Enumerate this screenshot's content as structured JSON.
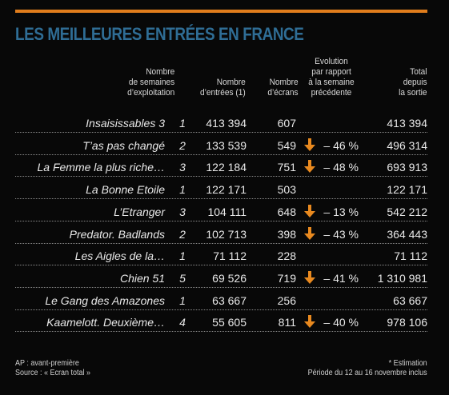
{
  "title": "LES MEILLEURES ENTRÉES EN FRANCE",
  "headers": {
    "weeks": [
      "Nombre",
      "de semaines",
      "d’exploitation"
    ],
    "entries": [
      "Nombre",
      "d’entrées (1)"
    ],
    "screens": [
      "Nombre",
      "d’écrans"
    ],
    "evolution": [
      "Evolution",
      "par rapport",
      "à la semaine",
      "précédente"
    ],
    "total": [
      "Total",
      "depuis",
      "la sortie"
    ]
  },
  "rows": [
    {
      "title": "Insaisissables 3",
      "weeks": "1",
      "entries": "413 394",
      "screens": "607",
      "down": false,
      "evolution": "",
      "total": "413 394"
    },
    {
      "title": "T’as pas changé",
      "weeks": "2",
      "entries": "133 539",
      "screens": "549",
      "down": true,
      "evolution": "– 46 %",
      "total": "496 314"
    },
    {
      "title": "La Femme la plus riche…",
      "weeks": "3",
      "entries": "122 184",
      "screens": "751",
      "down": true,
      "evolution": "– 48 %",
      "total": "693 913"
    },
    {
      "title": "La Bonne Etoile",
      "weeks": "1",
      "entries": "122 171",
      "screens": "503",
      "down": false,
      "evolution": "",
      "total": "122 171"
    },
    {
      "title": "L’Etranger",
      "weeks": "3",
      "entries": "104 111",
      "screens": "648",
      "down": true,
      "evolution": "– 13 %",
      "total": "542 212"
    },
    {
      "title": "Predator. Badlands",
      "weeks": "2",
      "entries": "102 713",
      "screens": "398",
      "down": true,
      "evolution": "– 43 %",
      "total": "364 443"
    },
    {
      "title": "Les Aigles de la…",
      "weeks": "1",
      "entries": "71 112",
      "screens": "228",
      "down": false,
      "evolution": "",
      "total": "71 112"
    },
    {
      "title": "Chien 51",
      "weeks": "5",
      "entries": "69 526",
      "screens": "719",
      "down": true,
      "evolution": "– 41 %",
      "total": "1 310 981"
    },
    {
      "title": "Le Gang des Amazones",
      "weeks": "1",
      "entries": "63 667",
      "screens": "256",
      "down": false,
      "evolution": "",
      "total": "63 667"
    },
    {
      "title": "Kaamelott. Deuxième…",
      "weeks": "4",
      "entries": "55 605",
      "screens": "811",
      "down": true,
      "evolution": "– 40 %",
      "total": "978 106"
    }
  ],
  "footer": {
    "ap": "AP : avant-première",
    "source": "Source : « Ecran total »",
    "estimation": "* Estimation",
    "period": "Période du 12 au 16 novembre inclus"
  },
  "colors": {
    "accent_bar": "#e07d1c",
    "title": "#2f6d95",
    "arrow": "#e8891f"
  },
  "icons": {
    "decrease": "arrow-down-icon"
  }
}
